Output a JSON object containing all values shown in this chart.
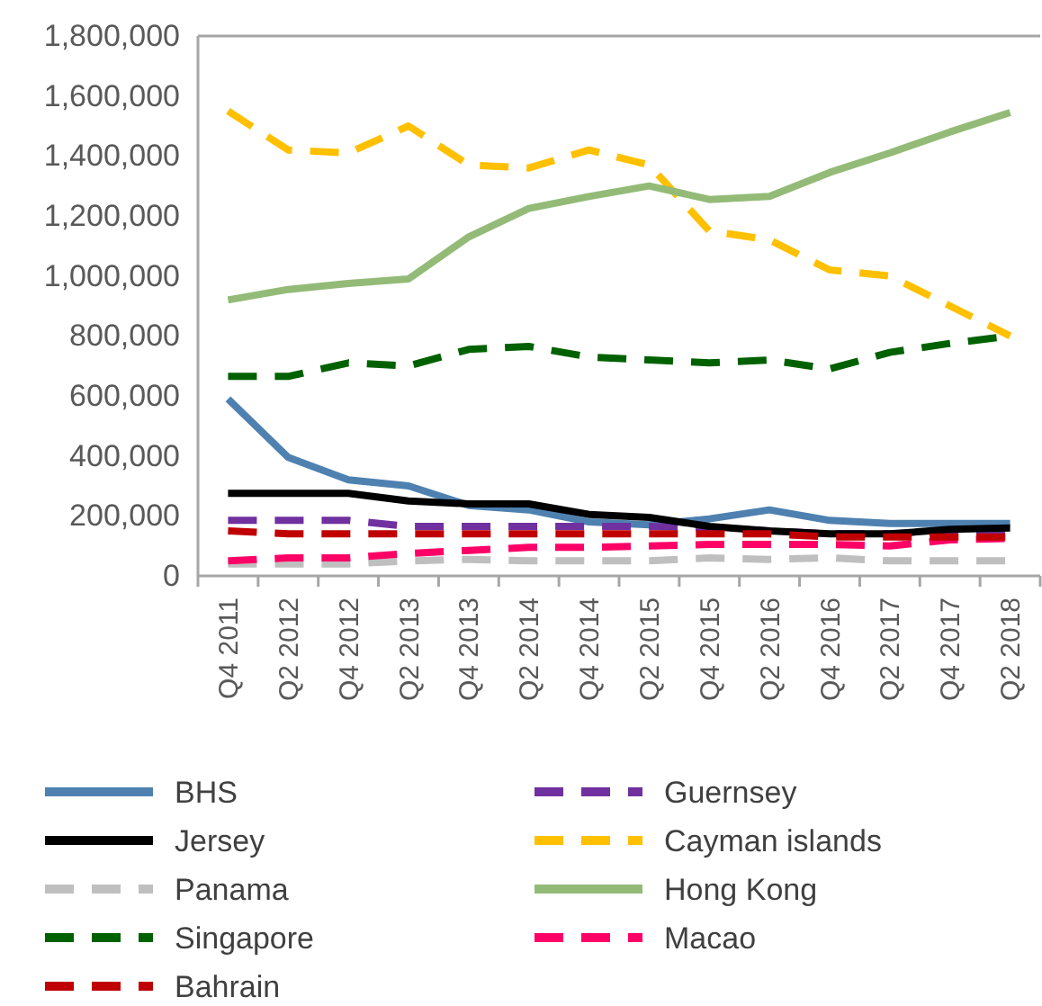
{
  "chart_data": {
    "type": "line",
    "categories": [
      "Q4 2011",
      "Q2 2012",
      "Q4 2012",
      "Q2 2013",
      "Q4 2013",
      "Q2 2014",
      "Q4 2014",
      "Q2 2015",
      "Q4 2015",
      "Q2 2016",
      "Q4 2016",
      "Q2 2017",
      "Q4 2017",
      "Q2 2018"
    ],
    "series": [
      {
        "name": "BHS",
        "color": "#4e81b0",
        "line_style": "solid",
        "values": [
          590000,
          395000,
          320000,
          300000,
          235000,
          220000,
          180000,
          170000,
          190000,
          220000,
          185000,
          175000,
          175000,
          175000
        ]
      },
      {
        "name": "Guernsey",
        "color": "#7030a0",
        "line_style": "dashed",
        "values": [
          185000,
          185000,
          185000,
          165000,
          165000,
          165000,
          165000,
          165000,
          160000,
          150000,
          140000,
          140000,
          145000,
          150000
        ]
      },
      {
        "name": "Jersey",
        "color": "#000000",
        "line_style": "solid",
        "values": [
          275000,
          275000,
          275000,
          250000,
          240000,
          240000,
          205000,
          195000,
          165000,
          150000,
          140000,
          140000,
          155000,
          160000
        ]
      },
      {
        "name": "Cayman islands",
        "color": "#ffc000",
        "line_style": "dashed",
        "values": [
          1550000,
          1420000,
          1410000,
          1500000,
          1370000,
          1360000,
          1420000,
          1370000,
          1150000,
          1120000,
          1020000,
          1000000,
          900000,
          800000
        ]
      },
      {
        "name": "Panama",
        "color": "#bfbfbf",
        "line_style": "dashed",
        "values": [
          40000,
          40000,
          40000,
          50000,
          55000,
          50000,
          50000,
          50000,
          60000,
          55000,
          60000,
          50000,
          50000,
          50000
        ]
      },
      {
        "name": "Hong Kong",
        "color": "#93bb77",
        "line_style": "solid",
        "values": [
          920000,
          955000,
          975000,
          990000,
          1130000,
          1225000,
          1265000,
          1300000,
          1255000,
          1265000,
          1345000,
          1410000,
          1480000,
          1545000
        ]
      },
      {
        "name": "Singapore",
        "color": "#006100",
        "line_style": "dashed",
        "values": [
          665000,
          665000,
          710000,
          700000,
          755000,
          765000,
          730000,
          720000,
          710000,
          720000,
          690000,
          745000,
          775000,
          800000
        ]
      },
      {
        "name": "Macao",
        "color": "#ff0066",
        "line_style": "dashed",
        "values": [
          50000,
          60000,
          60000,
          75000,
          85000,
          95000,
          95000,
          100000,
          105000,
          105000,
          105000,
          100000,
          120000,
          125000
        ]
      },
      {
        "name": "Bahrain",
        "color": "#c00000",
        "line_style": "dashed",
        "values": [
          150000,
          140000,
          140000,
          140000,
          140000,
          140000,
          140000,
          140000,
          140000,
          140000,
          130000,
          130000,
          130000,
          130000
        ]
      }
    ],
    "ylim": [
      0,
      1800000
    ],
    "yticks": [
      {
        "value": 0,
        "label": "0"
      },
      {
        "value": 200000,
        "label": "200,000"
      },
      {
        "value": 400000,
        "label": "400,000"
      },
      {
        "value": 600000,
        "label": "600,000"
      },
      {
        "value": 800000,
        "label": "800,000"
      },
      {
        "value": 1000000,
        "label": "1,000,000"
      },
      {
        "value": 1200000,
        "label": "1,200,000"
      },
      {
        "value": 1400000,
        "label": "1,400,000"
      },
      {
        "value": 1600000,
        "label": "1,600,000"
      },
      {
        "value": 1800000,
        "label": "1,800,000"
      }
    ],
    "grid": false,
    "legend": "bottom"
  }
}
